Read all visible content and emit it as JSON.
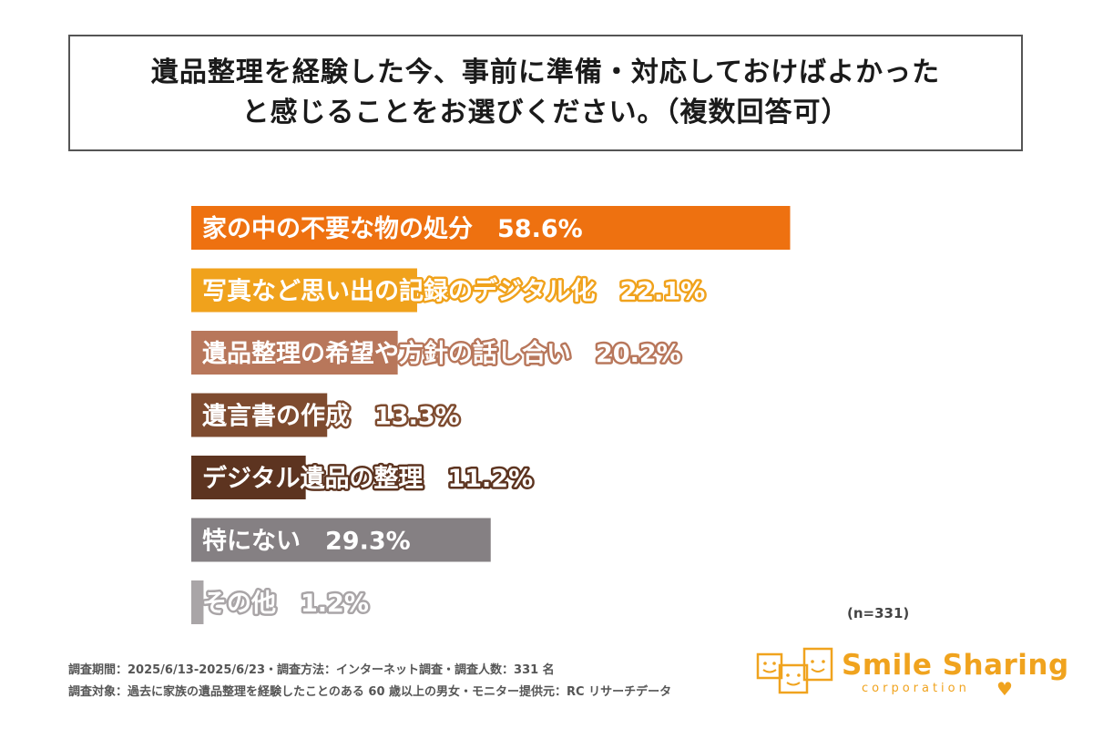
{
  "title": {
    "line1": "遺品整理を経験した今、事前に準備・対応しておけばよかった",
    "line2": "と感じることをお選びください。（複数回答可）"
  },
  "chart_data": {
    "type": "bar",
    "orientation": "horizontal",
    "unit": "%",
    "xlim": [
      0,
      100
    ],
    "categories": [
      "家の中の不要な物の処分",
      "写真など思い出の記録のデジタル化",
      "遺品整理の希望や方針の話し合い",
      "遺言書の作成",
      "デジタル遺品の整理",
      "特にない",
      "その他"
    ],
    "values": [
      58.6,
      22.1,
      20.2,
      13.3,
      11.2,
      29.3,
      1.2
    ],
    "value_labels": [
      "58.6%",
      "22.1%",
      "20.2%",
      "13.3%",
      "11.2%",
      "29.3%",
      "1.2%"
    ],
    "colors": [
      "#ee7110",
      "#f0a21c",
      "#b8775b",
      "#7e4b2f",
      "#5d3420",
      "#858083",
      "#a9a5a7"
    ],
    "outline_colors": [
      "#ee7110",
      "#f0a21c",
      "#b8775b",
      "#7e4b2f",
      "#5d3420",
      "#858083",
      "#a9a5a7"
    ],
    "grid": false,
    "legend": "none"
  },
  "sample_size": "(n=331)",
  "footnotes": {
    "line1": "調査期間：2025/6/13-2025/6/23・調査方法：インターネット調査・調査人数：331 名",
    "line2": "調査対象：過去に家族の遺品整理を経験したことのある 60 歳以上の男女・モニター提供元：RC リサーチデータ"
  },
  "logo": {
    "name": "Smile Sharing",
    "subtitle": "corporation",
    "color": "#f0a31e"
  }
}
